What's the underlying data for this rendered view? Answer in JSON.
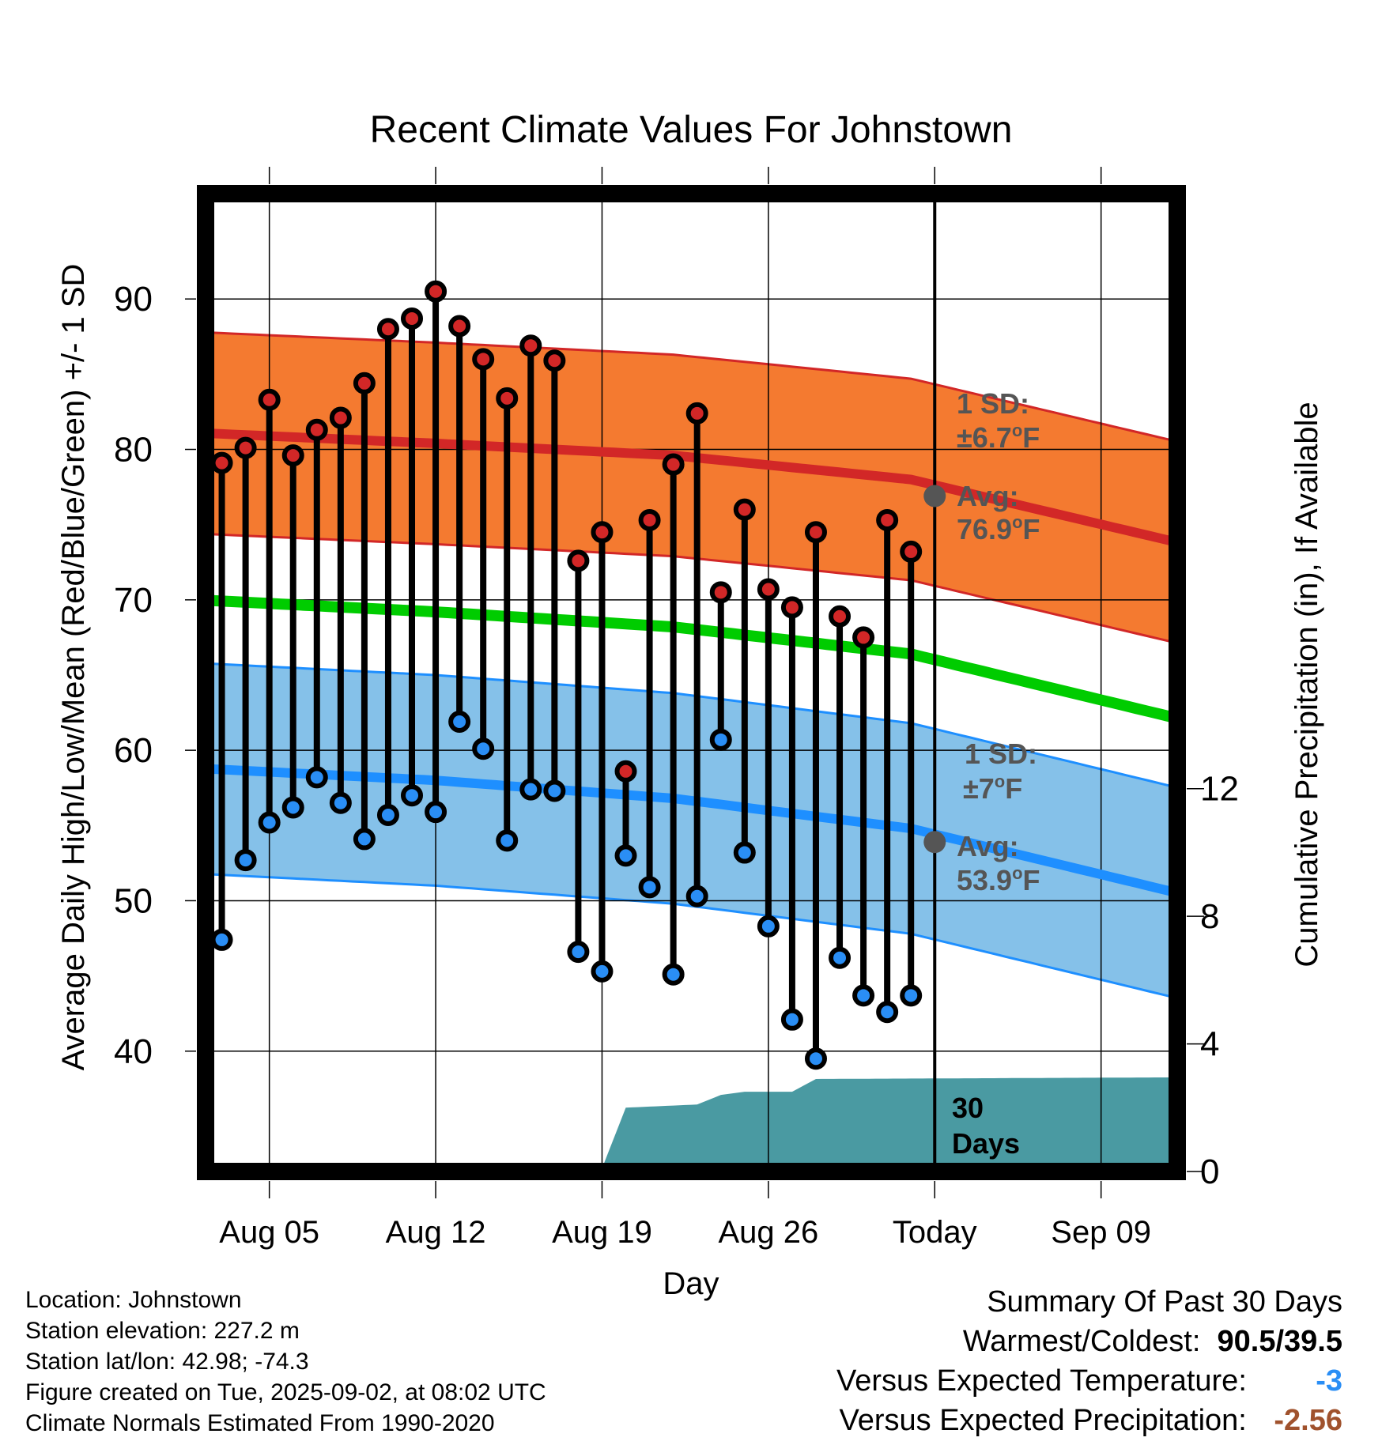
{
  "chart_data": {
    "type": "line",
    "title": "Recent Climate Values For Johnstown",
    "xlabel": "Day",
    "ylabel": "Average Daily High/Low/Mean (Red/Blue/Green) +/- 1 SD",
    "y2label": "Cumulative Precipitation (in), If Available",
    "ylim": [
      32,
      97
    ],
    "y2lim": [
      0,
      30.65
    ],
    "yticks": [
      40,
      50,
      60,
      70,
      80,
      90
    ],
    "y2ticks": [
      0,
      4,
      8,
      12
    ],
    "x_dates": [
      "Aug 02",
      "Sep 12"
    ],
    "xticks": [
      {
        "date": "Aug 05",
        "label": "Aug 05"
      },
      {
        "date": "Aug 12",
        "label": "Aug 12"
      },
      {
        "date": "Aug 19",
        "label": "Aug 19"
      },
      {
        "date": "Aug 26",
        "label": "Aug 26"
      },
      {
        "date": "Sep 02",
        "label": "Today"
      },
      {
        "date": "Sep 09",
        "label": "Sep 09"
      }
    ],
    "today_date": "Sep 02",
    "days": [
      {
        "date": "Aug 03",
        "high": 79.1,
        "low": 47.4
      },
      {
        "date": "Aug 04",
        "high": 80.1,
        "low": 52.7
      },
      {
        "date": "Aug 05",
        "high": 83.3,
        "low": 55.2
      },
      {
        "date": "Aug 06",
        "high": 79.6,
        "low": 56.2
      },
      {
        "date": "Aug 07",
        "high": 81.3,
        "low": 58.2
      },
      {
        "date": "Aug 08",
        "high": 82.1,
        "low": 56.5
      },
      {
        "date": "Aug 09",
        "high": 84.4,
        "low": 54.1
      },
      {
        "date": "Aug 10",
        "high": 88.0,
        "low": 55.7
      },
      {
        "date": "Aug 11",
        "high": 88.7,
        "low": 57.0
      },
      {
        "date": "Aug 12",
        "high": 90.5,
        "low": 55.9
      },
      {
        "date": "Aug 13",
        "high": 88.2,
        "low": 61.9
      },
      {
        "date": "Aug 14",
        "high": 86.0,
        "low": 60.1
      },
      {
        "date": "Aug 15",
        "high": 83.4,
        "low": 54.0
      },
      {
        "date": "Aug 16",
        "high": 86.9,
        "low": 57.4
      },
      {
        "date": "Aug 17",
        "high": 85.9,
        "low": 57.3
      },
      {
        "date": "Aug 18",
        "high": 72.6,
        "low": 46.6
      },
      {
        "date": "Aug 19",
        "high": 74.5,
        "low": 45.3
      },
      {
        "date": "Aug 20",
        "high": 58.6,
        "low": 53.0
      },
      {
        "date": "Aug 21",
        "high": 75.3,
        "low": 50.9
      },
      {
        "date": "Aug 22",
        "high": 79.0,
        "low": 45.1
      },
      {
        "date": "Aug 23",
        "high": 82.4,
        "low": 50.3
      },
      {
        "date": "Aug 24",
        "high": 70.5,
        "low": 60.7
      },
      {
        "date": "Aug 25",
        "high": 76.0,
        "low": 53.2
      },
      {
        "date": "Aug 26",
        "high": 70.7,
        "low": 48.3
      },
      {
        "date": "Aug 27",
        "high": 69.5,
        "low": 42.1
      },
      {
        "date": "Aug 28",
        "high": 74.5,
        "low": 39.5
      },
      {
        "date": "Aug 29",
        "high": 68.9,
        "low": 46.2
      },
      {
        "date": "Aug 30",
        "high": 67.5,
        "low": 43.7
      },
      {
        "date": "Aug 31",
        "high": 75.3,
        "low": 42.6
      },
      {
        "date": "Sep 01",
        "high": 73.2,
        "low": 43.7
      }
    ],
    "normals": {
      "high": [
        [
          0,
          81.1
        ],
        [
          10,
          80.4
        ],
        [
          20,
          79.6
        ],
        [
          30,
          78.0
        ],
        [
          41,
          73.9
        ]
      ],
      "mean": [
        [
          0,
          70.0
        ],
        [
          10,
          69.2
        ],
        [
          20,
          68.2
        ],
        [
          30,
          66.4
        ],
        [
          41,
          62.2
        ]
      ],
      "low": [
        [
          0,
          58.8
        ],
        [
          10,
          58.0
        ],
        [
          20,
          56.8
        ],
        [
          30,
          54.8
        ],
        [
          41,
          50.6
        ]
      ],
      "high_sd": 6.7,
      "low_sd": 7.0
    },
    "precip_cumulative": [
      [
        0,
        0
      ],
      [
        14,
        0
      ],
      [
        17,
        0.1
      ],
      [
        18,
        2.0
      ],
      [
        21,
        2.1
      ],
      [
        22,
        2.4
      ],
      [
        23,
        2.5
      ],
      [
        25,
        2.5
      ],
      [
        26,
        2.9
      ],
      [
        41,
        2.95
      ]
    ],
    "annotations": {
      "high_sd_label": "1 SD:",
      "high_sd_value": "±6.7",
      "high_avg_label": "Avg:",
      "high_avg_value": "76.9",
      "low_sd_label": "1 SD:",
      "low_sd_value": "±7",
      "low_avg_label": "Avg:",
      "low_avg_value": "53.9",
      "deg_unit": "o",
      "f_unit": "F",
      "days_line1": "30",
      "days_line2": "Days"
    },
    "colors": {
      "high_band": "#f47a30",
      "high_line": "#d22727",
      "mean_line": "#00cc00",
      "low_band": "#85c1e9",
      "low_line": "#1e8fff",
      "precip": "#4a9aa2",
      "high_marker": "#d22727",
      "low_marker": "#2a8ef5",
      "avg_marker": "#555555",
      "annotation_text": "#555555"
    }
  },
  "footer": {
    "location": "Location: Johnstown",
    "elevation": "Station elevation: 227.2 m",
    "latlon": "Station lat/lon: 42.98; -74.3",
    "created": "Figure created on Tue, 2025-09-02, at 08:02 UTC",
    "normals": "Climate Normals Estimated From 1990-2020"
  },
  "summary": {
    "title": "Summary Of Past 30 Days",
    "warm_cold_label": "Warmest/Coldest:",
    "warm_cold_value": "90.5/39.5",
    "temp_label": "Versus Expected Temperature:",
    "temp_value": "-3",
    "temp_color": "#2a8ef5",
    "precip_label": "Versus Expected Precipitation:",
    "precip_value": "-2.56",
    "precip_color": "#a0522d"
  }
}
